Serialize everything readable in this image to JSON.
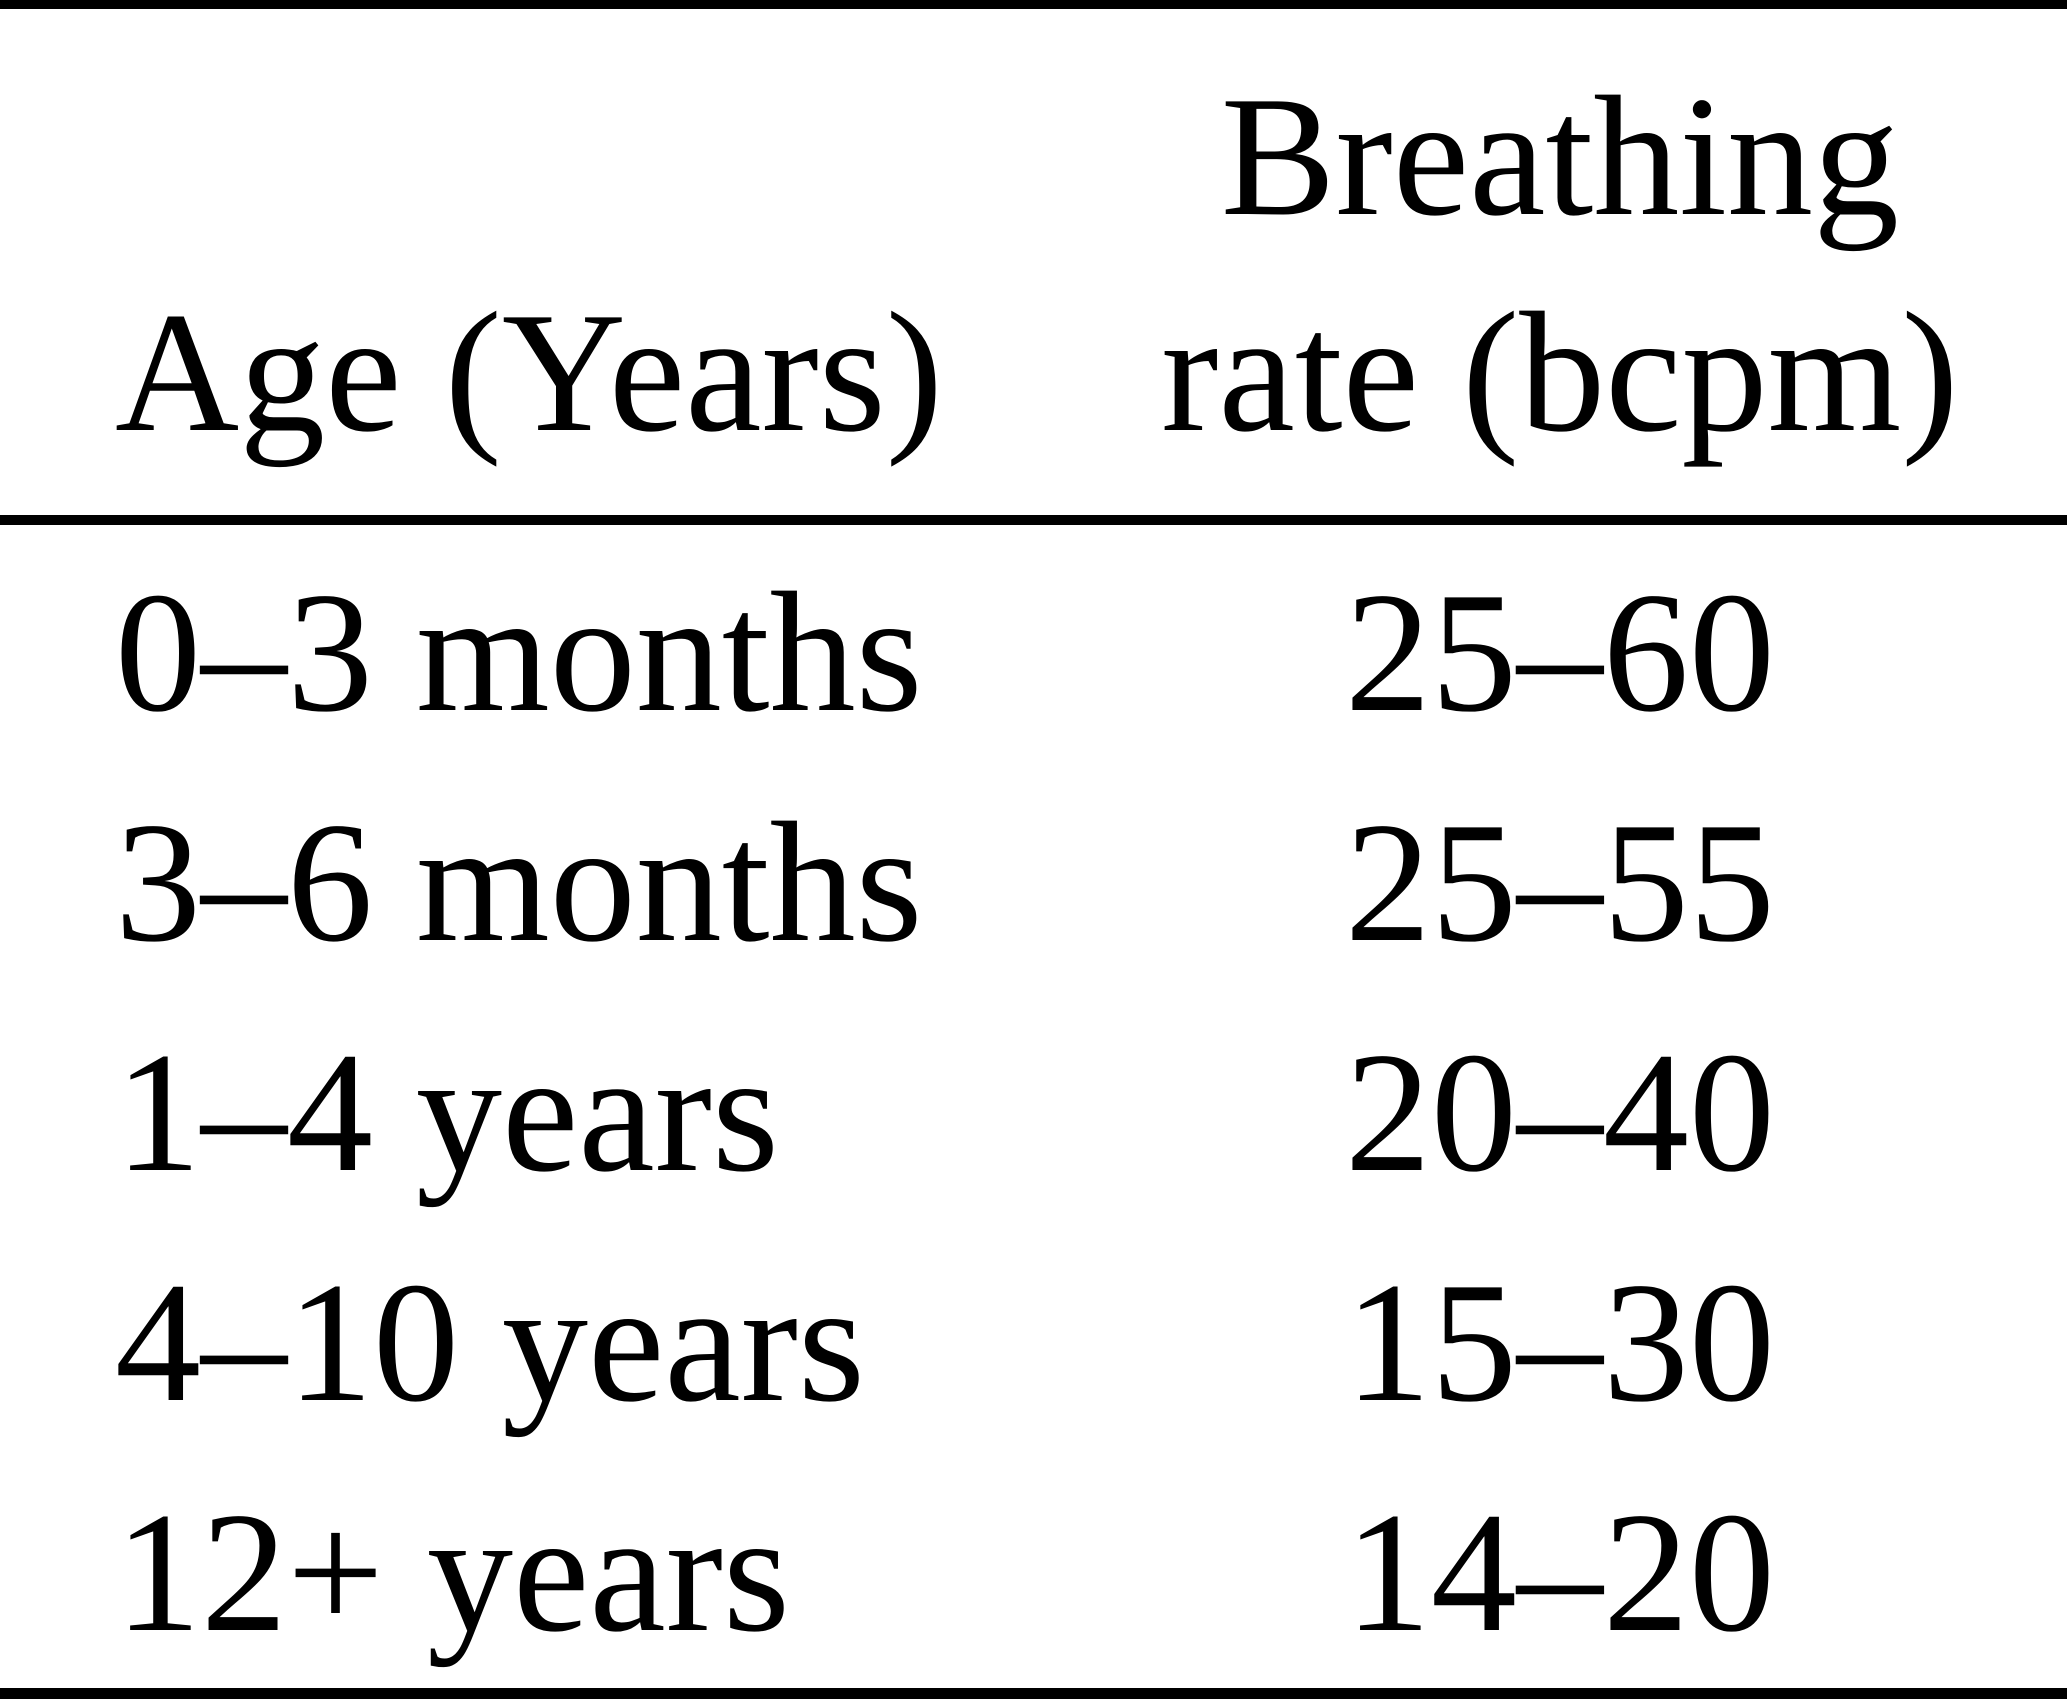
{
  "page": {
    "background_color": "#ffffff",
    "text_color": "#000000",
    "rule_color": "#000000"
  },
  "table": {
    "header": {
      "age": "Age (Years)",
      "rate_line1": "Breathing",
      "rate_line2": "rate (bcpm)"
    },
    "rows": [
      {
        "age": "0–3 months",
        "rate": "25–60"
      },
      {
        "age": "3–6 months",
        "rate": "25–55"
      },
      {
        "age": "1–4 years",
        "rate": "20–40"
      },
      {
        "age": "4–10 years",
        "rate": "15–30"
      },
      {
        "age": "12+ years",
        "rate": "14–20"
      }
    ]
  },
  "chart_data": {
    "type": "table",
    "columns": [
      "Age (Years)",
      "Breathing rate (bcpm)"
    ],
    "rows": [
      [
        "0–3 months",
        "25–60"
      ],
      [
        "3–6 months",
        "25–55"
      ],
      [
        "1–4 years",
        "20–40"
      ],
      [
        "4–10 years",
        "15–30"
      ],
      [
        "12+ years",
        "14–20"
      ]
    ],
    "breathing_rate_ranges_bcpm": [
      {
        "age": "0–3 months",
        "min": 25,
        "max": 60
      },
      {
        "age": "3–6 months",
        "min": 25,
        "max": 55
      },
      {
        "age": "1–4 years",
        "min": 20,
        "max": 40
      },
      {
        "age": "4–10 years",
        "min": 15,
        "max": 30
      },
      {
        "age": "12+ years",
        "min": 14,
        "max": 20
      }
    ]
  }
}
